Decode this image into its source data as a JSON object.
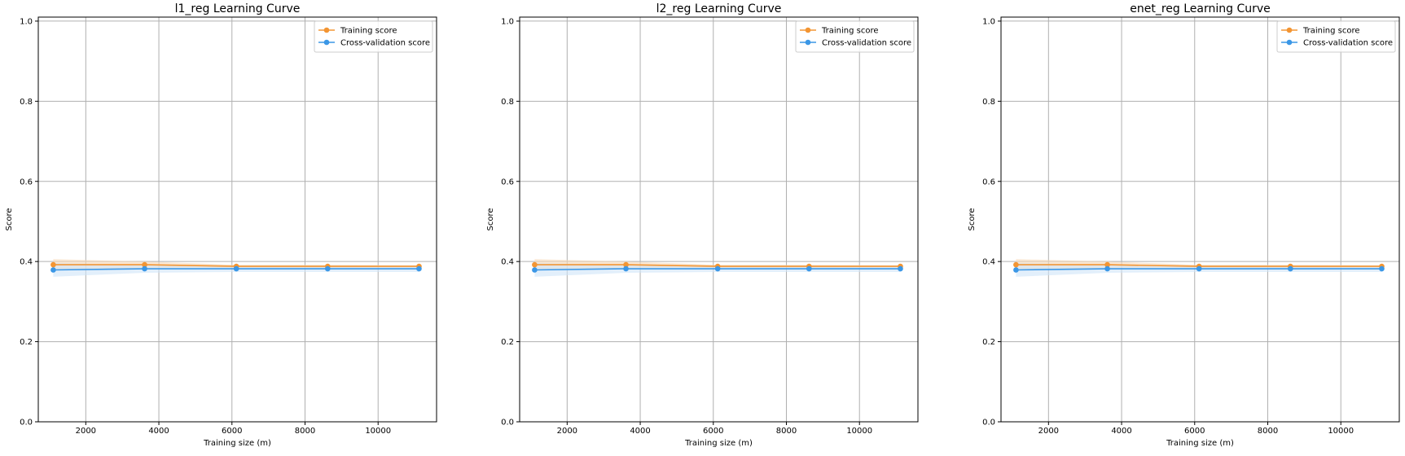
{
  "colors": {
    "training": "#f39533",
    "cv": "#3b97e6",
    "training_band": "#f7d9b8",
    "cv_band": "#cfe4f8",
    "grid": "#b0b0b0",
    "axes": "#000000"
  },
  "chart_data": [
    {
      "type": "line",
      "title": "l1_reg Learning Curve",
      "xlabel": "Training size (m)",
      "ylabel": "Score",
      "xlim": [
        700,
        11600
      ],
      "ylim": [
        0.0,
        1.01
      ],
      "xticks": [
        2000,
        4000,
        6000,
        8000,
        10000
      ],
      "xtick_labels": [
        "2000",
        "4000",
        "6000",
        "8000",
        "10000"
      ],
      "yticks": [
        0.0,
        0.2,
        0.4,
        0.6,
        0.8,
        1.0
      ],
      "ytick_labels": [
        "0.0",
        "0.2",
        "0.4",
        "0.6",
        "0.8",
        "1.0"
      ],
      "grid": true,
      "legend_position": "upper right",
      "x": [
        1110,
        3610,
        6120,
        8620,
        11120
      ],
      "series": [
        {
          "name": "Training score",
          "values": [
            0.392,
            0.392,
            0.388,
            0.388,
            0.388
          ],
          "band_lower": [
            0.378,
            0.384,
            0.384,
            0.384,
            0.385
          ],
          "band_upper": [
            0.406,
            0.4,
            0.392,
            0.392,
            0.391
          ]
        },
        {
          "name": "Cross-validation score",
          "values": [
            0.379,
            0.382,
            0.382,
            0.382,
            0.382
          ],
          "band_lower": [
            0.362,
            0.372,
            0.374,
            0.374,
            0.374
          ],
          "band_upper": [
            0.396,
            0.392,
            0.39,
            0.39,
            0.39
          ]
        }
      ]
    },
    {
      "type": "line",
      "title": "l2_reg Learning Curve",
      "xlabel": "Training size (m)",
      "ylabel": "Score",
      "xlim": [
        700,
        11600
      ],
      "ylim": [
        0.0,
        1.01
      ],
      "xticks": [
        2000,
        4000,
        6000,
        8000,
        10000
      ],
      "xtick_labels": [
        "2000",
        "4000",
        "6000",
        "8000",
        "10000"
      ],
      "yticks": [
        0.0,
        0.2,
        0.4,
        0.6,
        0.8,
        1.0
      ],
      "ytick_labels": [
        "0.0",
        "0.2",
        "0.4",
        "0.6",
        "0.8",
        "1.0"
      ],
      "grid": true,
      "legend_position": "upper right",
      "x": [
        1110,
        3610,
        6120,
        8620,
        11120
      ],
      "series": [
        {
          "name": "Training score",
          "values": [
            0.392,
            0.392,
            0.388,
            0.388,
            0.388
          ],
          "band_lower": [
            0.378,
            0.384,
            0.384,
            0.384,
            0.385
          ],
          "band_upper": [
            0.406,
            0.4,
            0.392,
            0.392,
            0.391
          ]
        },
        {
          "name": "Cross-validation score",
          "values": [
            0.379,
            0.382,
            0.382,
            0.382,
            0.382
          ],
          "band_lower": [
            0.362,
            0.372,
            0.374,
            0.374,
            0.374
          ],
          "band_upper": [
            0.396,
            0.392,
            0.39,
            0.39,
            0.39
          ]
        }
      ]
    },
    {
      "type": "line",
      "title": "enet_reg Learning Curve",
      "xlabel": "Training size (m)",
      "ylabel": "Score",
      "xlim": [
        700,
        11600
      ],
      "ylim": [
        0.0,
        1.01
      ],
      "xticks": [
        2000,
        4000,
        6000,
        8000,
        10000
      ],
      "xtick_labels": [
        "2000",
        "4000",
        "6000",
        "8000",
        "10000"
      ],
      "yticks": [
        0.0,
        0.2,
        0.4,
        0.6,
        0.8,
        1.0
      ],
      "ytick_labels": [
        "0.0",
        "0.2",
        "0.4",
        "0.6",
        "0.8",
        "1.0"
      ],
      "grid": true,
      "legend_position": "upper right",
      "x": [
        1110,
        3610,
        6120,
        8620,
        11120
      ],
      "series": [
        {
          "name": "Training score",
          "values": [
            0.392,
            0.392,
            0.388,
            0.388,
            0.388
          ],
          "band_lower": [
            0.378,
            0.384,
            0.384,
            0.384,
            0.385
          ],
          "band_upper": [
            0.406,
            0.4,
            0.392,
            0.392,
            0.391
          ]
        },
        {
          "name": "Cross-validation score",
          "values": [
            0.379,
            0.382,
            0.382,
            0.382,
            0.382
          ],
          "band_lower": [
            0.362,
            0.372,
            0.374,
            0.374,
            0.374
          ],
          "band_upper": [
            0.396,
            0.392,
            0.39,
            0.39,
            0.39
          ]
        }
      ]
    }
  ]
}
